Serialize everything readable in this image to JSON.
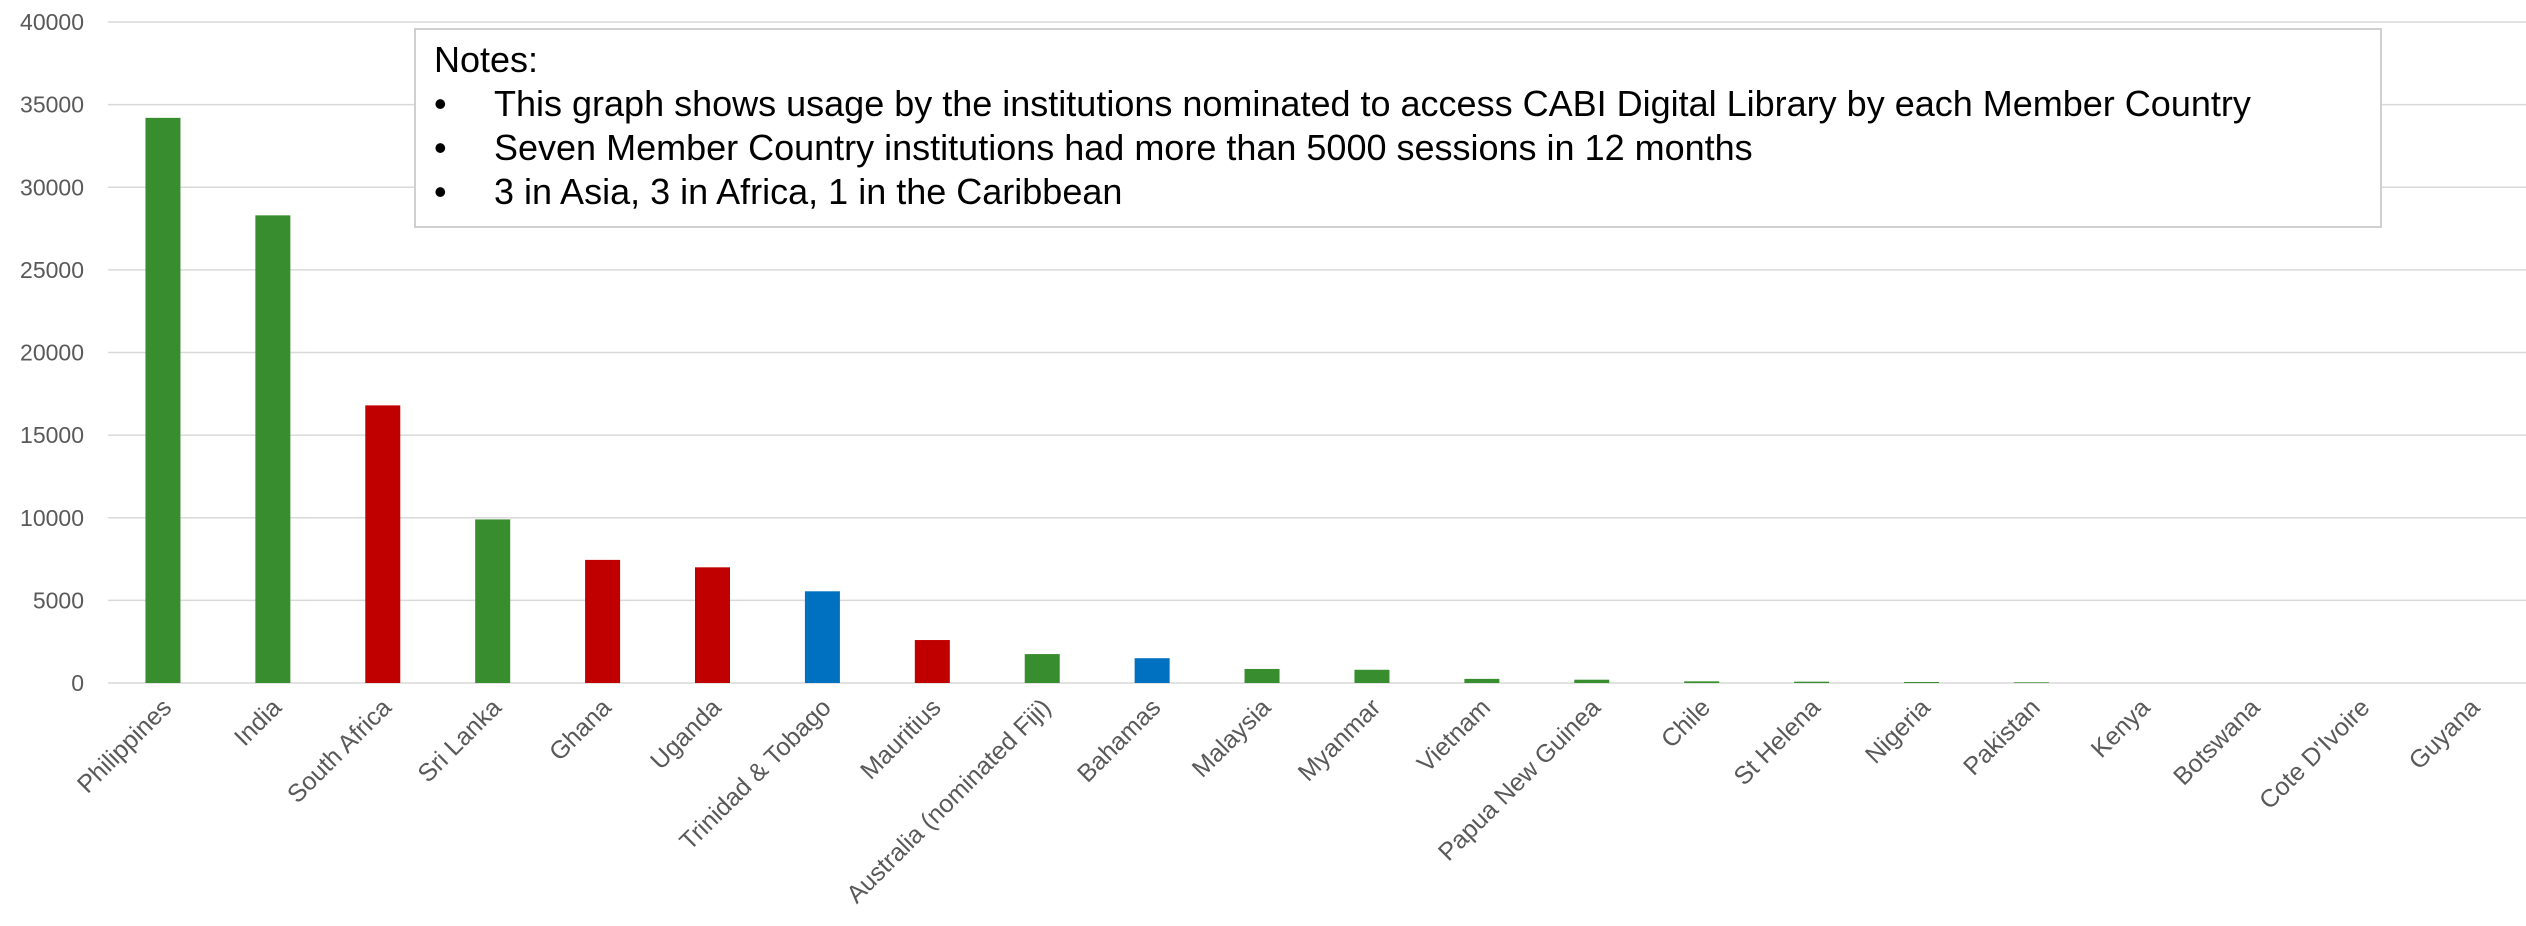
{
  "chart_data": {
    "type": "bar",
    "categories": [
      "Philippines",
      "India",
      "South Africa",
      "Sri Lanka",
      "Ghana",
      "Uganda",
      "Trinidad & Tobago",
      "Mauritius",
      "Australia (nominated Fiji)",
      "Bahamas",
      "Malaysia",
      "Myanmar",
      "Vietnam",
      "Papua New Guinea",
      "Chile",
      "St Helena",
      "Nigeria",
      "Pakistan",
      "Kenya",
      "Botswana",
      "Cote D'Ivoire",
      "Guyana"
    ],
    "values": [
      34200,
      28300,
      16800,
      9900,
      7450,
      7000,
      5550,
      2600,
      1750,
      1500,
      850,
      800,
      250,
      200,
      100,
      80,
      60,
      40,
      0,
      0,
      0,
      0
    ],
    "bar_colors": [
      "#388e2e",
      "#388e2e",
      "#c00000",
      "#388e2e",
      "#c00000",
      "#c00000",
      "#0070c0",
      "#c00000",
      "#388e2e",
      "#0070c0",
      "#388e2e",
      "#388e2e",
      "#388e2e",
      "#388e2e",
      "#388e2e",
      "#388e2e",
      "#388e2e",
      "#388e2e",
      "#388e2e",
      "#388e2e",
      "#388e2e",
      "#388e2e"
    ],
    "ylim": [
      0,
      40000
    ],
    "yticks": [
      "0",
      "5000",
      "10000",
      "15000",
      "20000",
      "25000",
      "30000",
      "35000",
      "40000"
    ],
    "grid": true,
    "title": "",
    "xlabel": "",
    "ylabel": ""
  },
  "notes": {
    "title": "Notes:",
    "bullet": "•",
    "items": [
      "This graph shows usage by the institutions nominated to access CABI Digital Library by each Member Country",
      "Seven Member Country institutions had more than 5000 sessions in 12 months",
      "3 in Asia, 3 in Africa, 1 in the Caribbean"
    ]
  }
}
